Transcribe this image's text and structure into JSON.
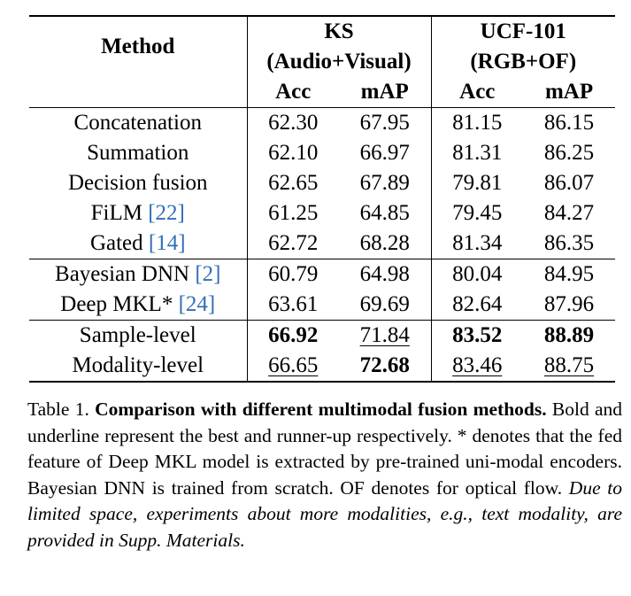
{
  "table": {
    "header": {
      "method": "Method",
      "groups": [
        {
          "name": "KS",
          "sub": "(Audio+Visual)"
        },
        {
          "name": "UCF-101",
          "sub": "(RGB+OF)"
        }
      ],
      "metrics": [
        "Acc",
        "mAP",
        "Acc",
        "mAP"
      ]
    },
    "rows": [
      {
        "method": "Concatenation",
        "ref": "",
        "values": [
          "62.30",
          "67.95",
          "81.15",
          "86.15"
        ]
      },
      {
        "method": "Summation",
        "ref": "",
        "values": [
          "62.10",
          "66.97",
          "81.31",
          "86.25"
        ]
      },
      {
        "method": "Decision fusion",
        "ref": "",
        "values": [
          "62.65",
          "67.89",
          "79.81",
          "86.07"
        ]
      },
      {
        "method": "FiLM",
        "ref": "[22]",
        "values": [
          "61.25",
          "64.85",
          "79.45",
          "84.27"
        ]
      },
      {
        "method": "Gated",
        "ref": "[14]",
        "values": [
          "62.72",
          "68.28",
          "81.34",
          "86.35"
        ]
      },
      {
        "method": "Bayesian DNN",
        "ref": "[2]",
        "values": [
          "60.79",
          "64.98",
          "80.04",
          "84.95"
        ]
      },
      {
        "method": "Deep MKL*",
        "ref": "[24]",
        "values": [
          "63.61",
          "69.69",
          "82.64",
          "87.96"
        ]
      },
      {
        "method": "Sample-level",
        "ref": "",
        "values": [
          "66.92",
          "71.84",
          "83.52",
          "88.89"
        ]
      },
      {
        "method": "Modality-level",
        "ref": "",
        "values": [
          "66.65",
          "72.68",
          "83.46",
          "88.75"
        ]
      }
    ]
  },
  "caption": {
    "label": "Table 1.",
    "bold": "Comparison with different multimodal fusion methods.",
    "plain": "Bold and underline represent the best and runner-up respectively. * denotes that the fed feature of Deep MKL model is extracted by pre-trained uni-modal encoders. Bayesian DNN is trained from scratch. OF denotes for optical flow.",
    "italic": "Due to limited space, experiments about more modalities, e.g., text modality, are provided in Supp. Materials."
  }
}
